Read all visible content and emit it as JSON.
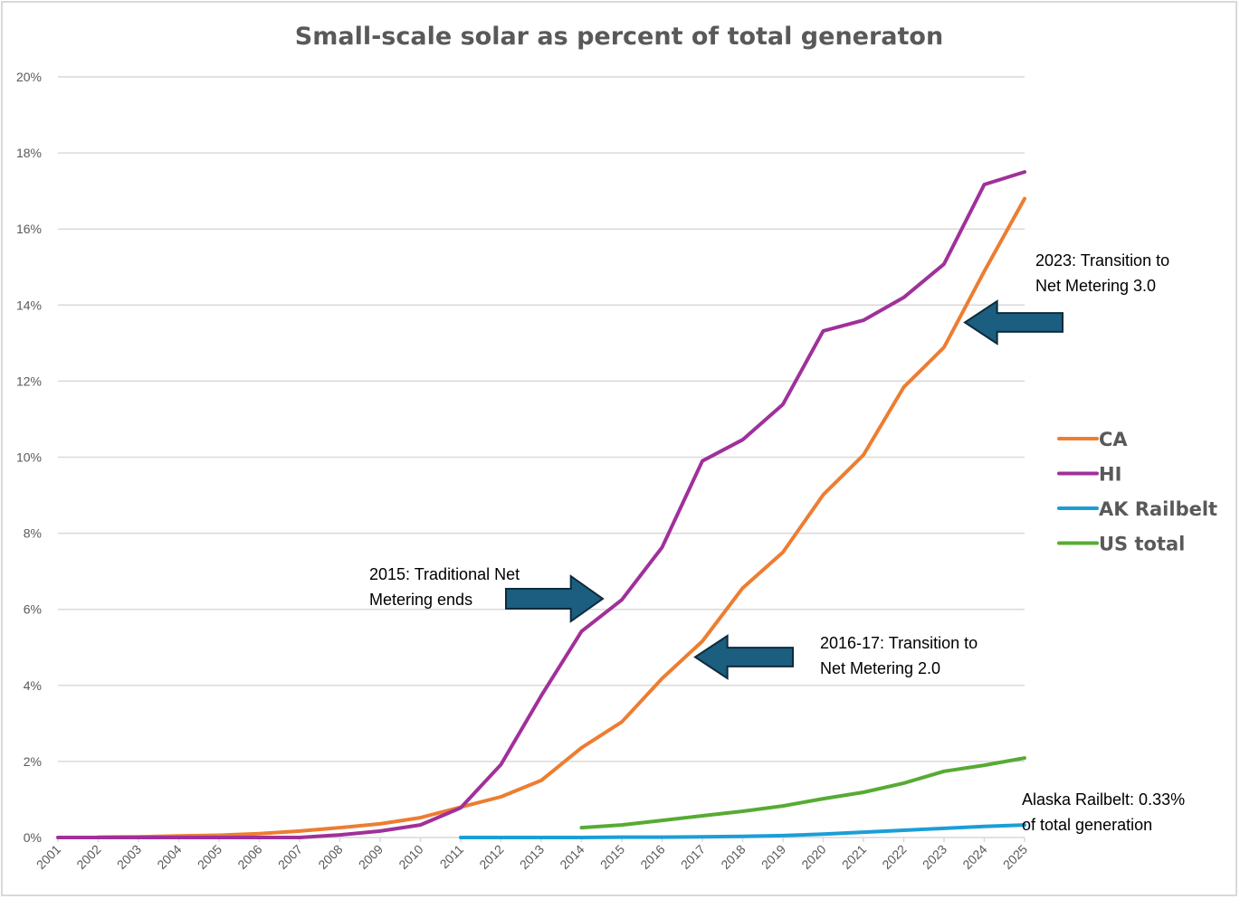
{
  "chart_data": {
    "type": "line",
    "title": "Small-scale solar as percent of total generaton",
    "xlabel": "",
    "ylabel": "",
    "x": [
      "2001",
      "2002",
      "2003",
      "2004",
      "2005",
      "2006",
      "2007",
      "2008",
      "2009",
      "2010",
      "2011",
      "2012",
      "2013",
      "2014",
      "2015",
      "2016",
      "2017",
      "2018",
      "2019",
      "2020",
      "2021",
      "2022",
      "2023",
      "2024",
      "2025"
    ],
    "ylim": [
      0,
      20
    ],
    "yticks": [
      "0%",
      "2%",
      "4%",
      "6%",
      "8%",
      "10%",
      "12%",
      "14%",
      "16%",
      "18%",
      "20%"
    ],
    "ytick_values": [
      0,
      2,
      4,
      6,
      8,
      10,
      12,
      14,
      16,
      18,
      20
    ],
    "grid": true,
    "legend_position": "right",
    "series": [
      {
        "name": "CA",
        "color": "#ed7d31",
        "values": [
          null,
          0.01,
          0.02,
          0.04,
          0.06,
          0.1,
          0.17,
          0.26,
          0.36,
          0.52,
          0.8,
          1.07,
          1.5,
          2.36,
          3.04,
          4.18,
          5.16,
          6.56,
          7.5,
          9.01,
          10.06,
          11.84,
          12.89,
          14.89,
          16.8
        ]
      },
      {
        "name": "HI",
        "color": "#a0309a",
        "values": [
          0,
          0,
          0,
          0,
          0,
          0,
          0,
          0.07,
          0.17,
          0.33,
          0.78,
          1.92,
          3.73,
          5.42,
          6.25,
          7.63,
          9.9,
          10.46,
          11.39,
          13.32,
          13.6,
          14.2,
          15.08,
          17.17,
          17.5
        ]
      },
      {
        "name": "AK Railbelt",
        "color": "#1b9ed6",
        "values": [
          null,
          null,
          null,
          null,
          null,
          null,
          null,
          null,
          null,
          null,
          0.0,
          0.0,
          0.0,
          0.0,
          0.01,
          0.01,
          0.02,
          0.03,
          0.05,
          0.09,
          0.14,
          0.19,
          0.24,
          0.29,
          0.33
        ]
      },
      {
        "name": "US total",
        "color": "#57ab34",
        "values": [
          null,
          null,
          null,
          null,
          null,
          null,
          null,
          null,
          null,
          null,
          null,
          null,
          null,
          0.26,
          0.33,
          0.45,
          0.57,
          0.69,
          0.83,
          1.02,
          1.19,
          1.43,
          1.74,
          1.9,
          2.09
        ]
      }
    ],
    "annotations": [
      {
        "id": "nm1",
        "lines": [
          "2015: Traditional Net",
          "Metering ends"
        ],
        "arrow_direction": "right",
        "points_to": {
          "series": "HI",
          "x": "2015"
        }
      },
      {
        "id": "nm2",
        "lines": [
          "2016-17: Transition to",
          "Net Metering 2.0"
        ],
        "arrow_direction": "left",
        "points_to": {
          "series": "CA",
          "x": "2017"
        }
      },
      {
        "id": "nm3",
        "lines": [
          "2023: Transition to",
          "Net Metering 3.0"
        ],
        "arrow_direction": "left",
        "points_to": {
          "series": "CA",
          "x": "2023"
        }
      },
      {
        "id": "ak",
        "lines": [
          "Alaska Railbelt: 0.33%",
          "of total generation"
        ],
        "arrow_direction": "none",
        "points_to": {
          "series": "AK Railbelt",
          "x": "2025"
        }
      }
    ],
    "arrow_color": "#1b5e80"
  }
}
